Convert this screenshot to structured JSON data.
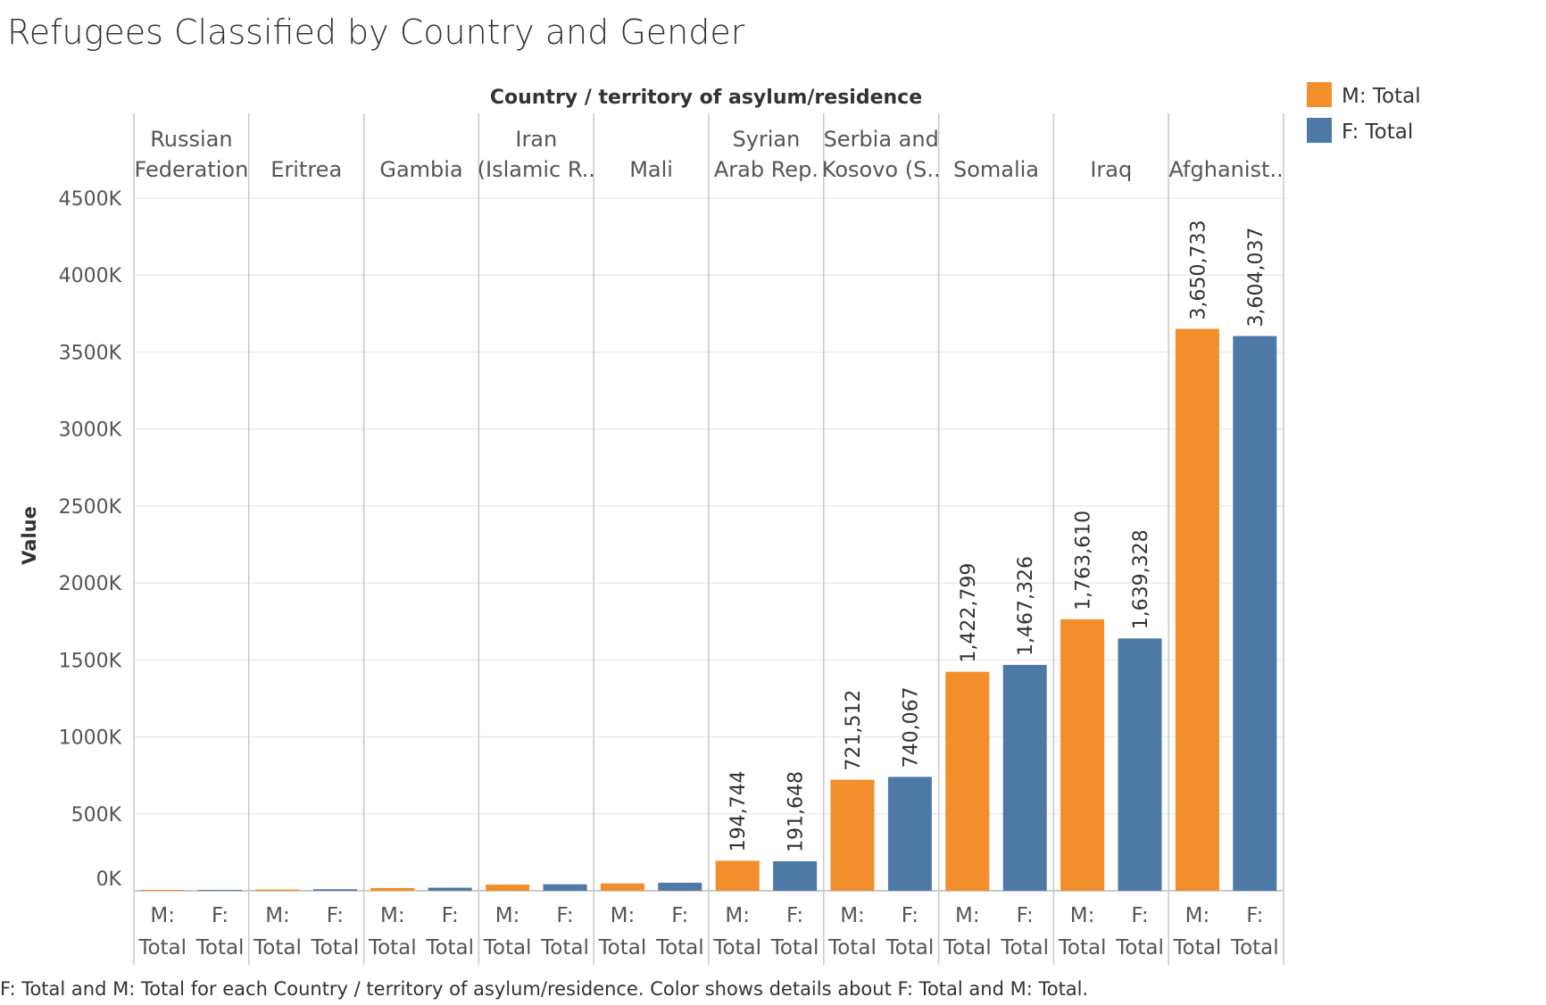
{
  "chart_data": {
    "type": "bar",
    "title": "Refugees Classified by Country and Gender",
    "column_header": "Country / territory of asylum/residence",
    "ylabel": "Value",
    "ylim": [
      0,
      4500000
    ],
    "y_ticks": [
      0,
      500000,
      1000000,
      1500000,
      2000000,
      2500000,
      3000000,
      3500000,
      4000000,
      4500000
    ],
    "y_tick_labels": [
      "0K",
      "500K",
      "1000K",
      "1500K",
      "2000K",
      "2500K",
      "3000K",
      "3500K",
      "4000K",
      "4500K"
    ],
    "categories": [
      {
        "label_lines": [
          "Russian",
          "Federation"
        ]
      },
      {
        "label_lines": [
          "Eritrea"
        ]
      },
      {
        "label_lines": [
          "Gambia"
        ]
      },
      {
        "label_lines": [
          "Iran",
          "(Islamic R.."
        ]
      },
      {
        "label_lines": [
          "Mali"
        ]
      },
      {
        "label_lines": [
          "Syrian",
          "Arab Rep."
        ]
      },
      {
        "label_lines": [
          "Serbia and",
          "Kosovo (S.."
        ]
      },
      {
        "label_lines": [
          "Somalia"
        ]
      },
      {
        "label_lines": [
          "Iraq"
        ]
      },
      {
        "label_lines": [
          "Afghanist.."
        ]
      }
    ],
    "series": [
      {
        "name": "M: Total",
        "axis_label_lines": [
          "M:",
          "Total"
        ],
        "color": "#F28E2B",
        "values": [
          2000,
          8000,
          18000,
          40000,
          48000,
          194744,
          721512,
          1422799,
          1763610,
          3650733
        ],
        "data_labels": [
          "",
          "",
          "",
          "",
          "",
          "194,744",
          "721,512",
          "1,422,799",
          "1,763,610",
          "3,650,733"
        ]
      },
      {
        "name": "F: Total",
        "axis_label_lines": [
          "F:",
          "Total"
        ],
        "color": "#4E79A7",
        "values": [
          2000,
          10000,
          20000,
          42000,
          52000,
          191648,
          740067,
          1467326,
          1639328,
          3604037
        ],
        "data_labels": [
          "",
          "",
          "",
          "",
          "",
          "191,648",
          "740,067",
          "1,467,326",
          "1,639,328",
          "3,604,037"
        ]
      }
    ],
    "legend_position": "top-right",
    "grid": true
  },
  "caption": "F: Total and M: Total for each Country / territory of asylum/residence.  Color shows details about F: Total and M: Total."
}
